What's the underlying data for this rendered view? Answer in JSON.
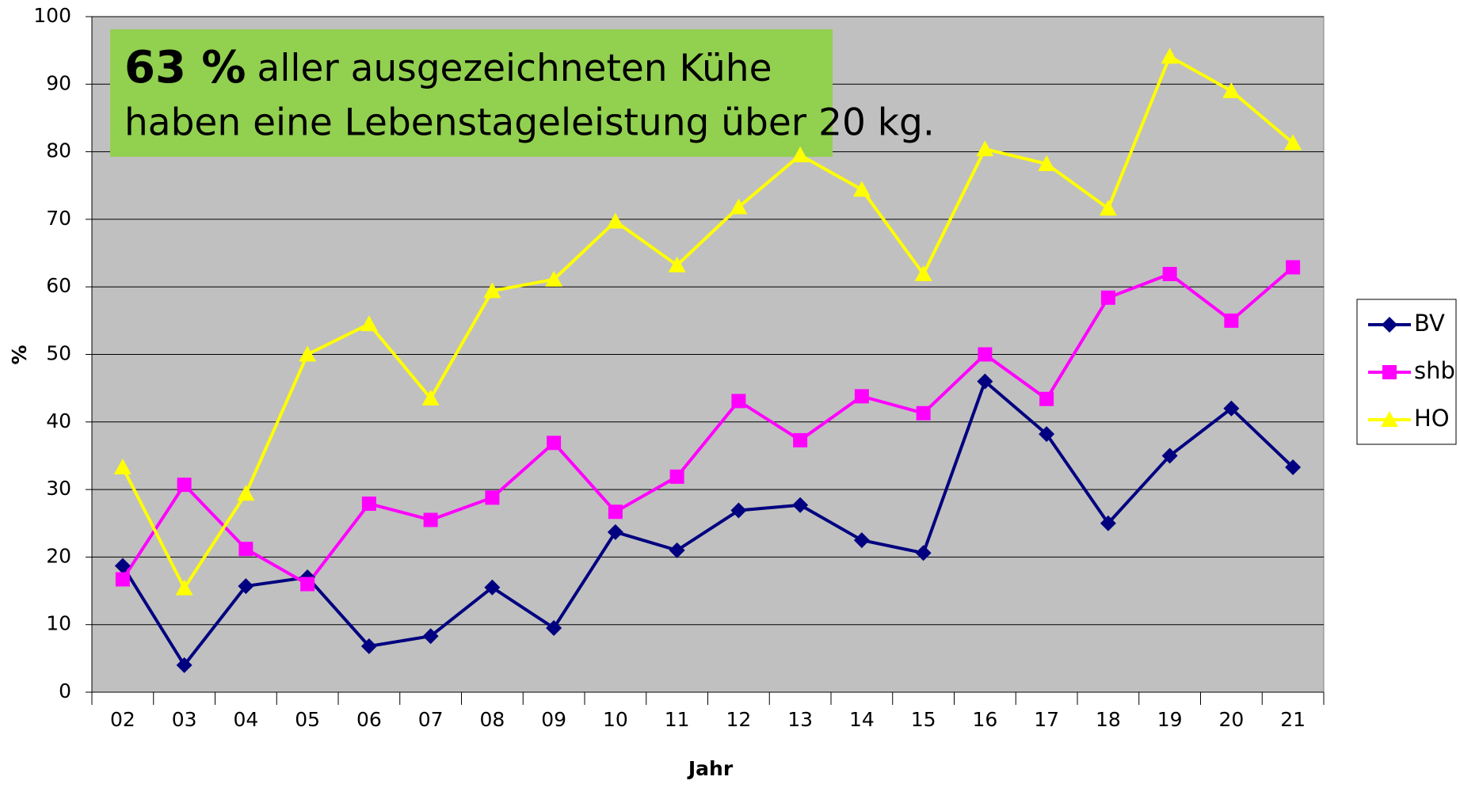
{
  "chart_data": {
    "type": "line",
    "annotation": {
      "highlight": "63 %",
      "line1": "aller ausgezeichneten Kühe",
      "line2": "haben eine Lebenstageleistung über 20 kg."
    },
    "x_label": "Jahr",
    "y_label": "%",
    "categories": [
      "02",
      "03",
      "04",
      "05",
      "06",
      "07",
      "08",
      "09",
      "10",
      "11",
      "12",
      "13",
      "14",
      "15",
      "16",
      "17",
      "18",
      "19",
      "20",
      "21"
    ],
    "series": [
      {
        "name": "BV",
        "color": "#000080",
        "marker": "diamond",
        "values": [
          18.7,
          4,
          15.7,
          17,
          6.8,
          8.3,
          15.5,
          9.5,
          23.7,
          21,
          26.9,
          27.7,
          22.5,
          20.6,
          46,
          38.2,
          25,
          35,
          42,
          33.3
        ]
      },
      {
        "name": "shb",
        "color": "#ff00ff",
        "marker": "square",
        "values": [
          16.7,
          30.7,
          21.2,
          16,
          27.9,
          25.5,
          28.8,
          36.9,
          26.7,
          31.9,
          43.1,
          37.3,
          43.8,
          41.3,
          50,
          43.4,
          58.4,
          61.9,
          55,
          62.9
        ]
      },
      {
        "name": "HO",
        "color": "#ffff00",
        "marker": "triangle",
        "values": [
          33.3,
          15.4,
          29.4,
          50,
          54.5,
          43.5,
          59.4,
          61.1,
          69.7,
          63.2,
          71.8,
          79.5,
          74.4,
          61.9,
          80.4,
          78.2,
          71.6,
          94.1,
          89,
          81.3
        ]
      }
    ],
    "ylim": [
      0,
      100
    ],
    "yticks": [
      0,
      10,
      20,
      30,
      40,
      50,
      60,
      70,
      80,
      90,
      100
    ],
    "grid": true,
    "plot_background": "#c0c0c0",
    "legend": "right"
  }
}
